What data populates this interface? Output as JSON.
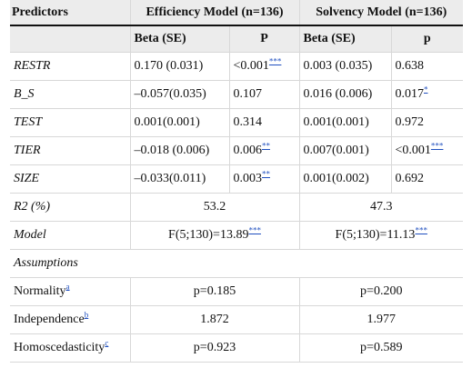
{
  "header": {
    "predictors": "Predictors",
    "efficiency_model": "Efficiency Model (n=136)",
    "solvency_model": "Solvency Model (n=136)",
    "beta_se_1": "Beta (SE)",
    "p_1": "P",
    "beta_se_2": "Beta (SE)",
    "p_2": "p"
  },
  "rows": [
    {
      "name": "RESTR",
      "eff_beta": "0.170 (0.031)",
      "eff_p": "<0.001",
      "eff_p_sup": "***",
      "sol_beta": "0.003 (0.035)",
      "sol_p": "0.638",
      "sol_p_sup": ""
    },
    {
      "name": "B_S",
      "eff_beta": "–0.057(0.035)",
      "eff_p": "0.107",
      "eff_p_sup": "",
      "sol_beta": "0.016 (0.006)",
      "sol_p": "0.017",
      "sol_p_sup": "*"
    },
    {
      "name": "TEST",
      "eff_beta": "0.001(0.001)",
      "eff_p": "0.314",
      "eff_p_sup": "",
      "sol_beta": "0.001(0.001)",
      "sol_p": "0.972",
      "sol_p_sup": ""
    },
    {
      "name": "TIER",
      "eff_beta": "–0.018 (0.006)",
      "eff_p": "0.006",
      "eff_p_sup": "**",
      "sol_beta": "0.007(0.001)",
      "sol_p": "<0.001",
      "sol_p_sup": "***"
    },
    {
      "name": "SIZE",
      "eff_beta": "–0.033(0.011)",
      "eff_p": "0.003",
      "eff_p_sup": "**",
      "sol_beta": "0.001(0.002)",
      "sol_p": "0.692",
      "sol_p_sup": ""
    }
  ],
  "r2": {
    "label": "R2 (%)",
    "efficiency": "53.2",
    "solvency": "47.3"
  },
  "model": {
    "label": "Model",
    "efficiency": "F(5;130)=13.89",
    "efficiency_sup": "***",
    "solvency": "F(5;130)=11.13",
    "solvency_sup": "***"
  },
  "assumptions": {
    "label": "Assumptions",
    "normality": {
      "label": "Normality",
      "sup": "a",
      "efficiency": "p=0.185",
      "solvency": "p=0.200"
    },
    "independence": {
      "label": "Independence",
      "sup": "b",
      "efficiency": "1.872",
      "solvency": "1.977"
    },
    "homoscedasticity": {
      "label": "Homoscedasticity",
      "sup": "c",
      "efficiency": "p=0.923",
      "solvency": "p=0.589"
    }
  }
}
